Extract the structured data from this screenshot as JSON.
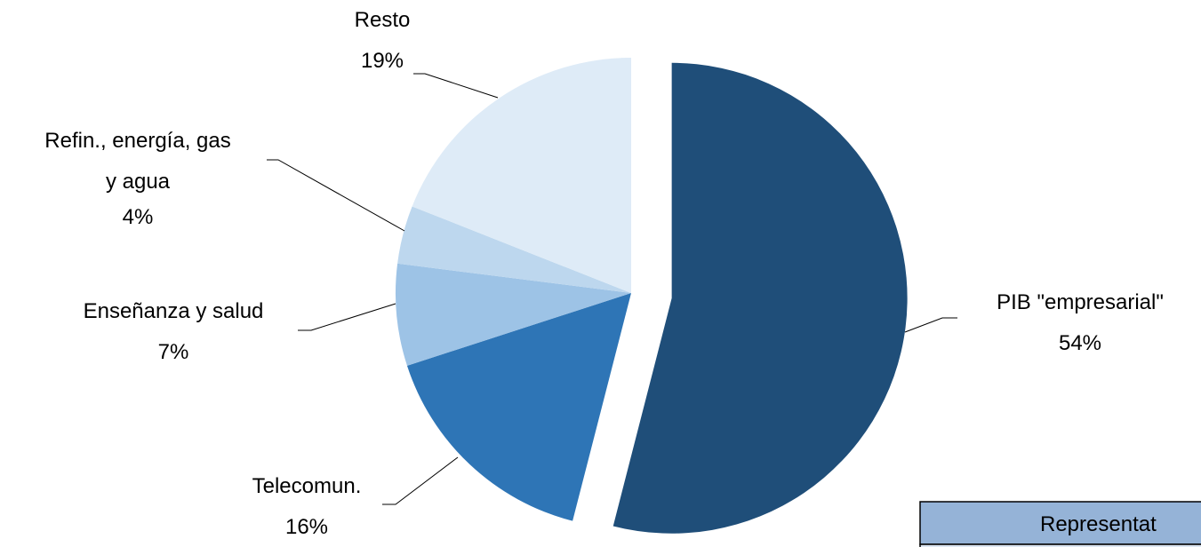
{
  "chart_data": {
    "type": "pie",
    "categories": [
      "PIB \"empresarial\"",
      "Telecomun.",
      "Enseñanza y salud",
      "Refin., energía, gas y agua",
      "Resto"
    ],
    "values": [
      54,
      16,
      7,
      4,
      19
    ],
    "value_labels": [
      "54%",
      "16%",
      "7%",
      "4%",
      "19%"
    ],
    "colors": [
      "#1f4e79",
      "#2e75b6",
      "#9dc3e6",
      "#bdd7ee",
      "#deebf7"
    ]
  },
  "table": {
    "header": "Representat"
  }
}
